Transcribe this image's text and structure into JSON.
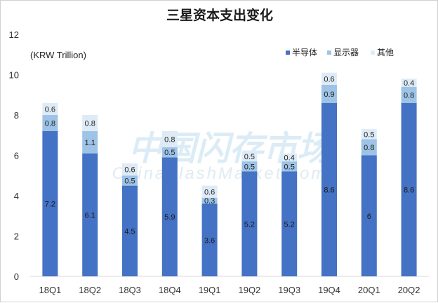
{
  "chart_data": {
    "type": "bar",
    "stacked": true,
    "title": "三星资本支出变化",
    "unit_label": "(KRW Trillion)",
    "categories": [
      "18Q1",
      "18Q2",
      "18Q3",
      "18Q4",
      "19Q1",
      "19Q2",
      "19Q3",
      "19Q4",
      "20Q1",
      "20Q2"
    ],
    "series": [
      {
        "name": "半导体",
        "color": "#4472c4",
        "values": [
          7.2,
          6.1,
          4.5,
          5.9,
          3.6,
          5.2,
          5.2,
          8.6,
          6,
          8.6
        ]
      },
      {
        "name": "显示器",
        "color": "#9dc3e6",
        "values": [
          0.8,
          1.1,
          0.5,
          0.5,
          0.3,
          0.5,
          0.5,
          0.9,
          0.8,
          0.8
        ]
      },
      {
        "name": "其他",
        "color": "#deebf7",
        "values": [
          0.6,
          0.8,
          0.6,
          0.8,
          0.6,
          0.5,
          0.4,
          0.6,
          0.5,
          0.4
        ]
      }
    ],
    "ylim": [
      0,
      12
    ],
    "yticks": [
      0,
      2,
      4,
      6,
      8,
      10,
      12
    ],
    "grid": false,
    "legend_position": "top-right"
  },
  "watermark": {
    "main": "中国闪存市场",
    "sub": "ChinaFlashMarket.com"
  }
}
